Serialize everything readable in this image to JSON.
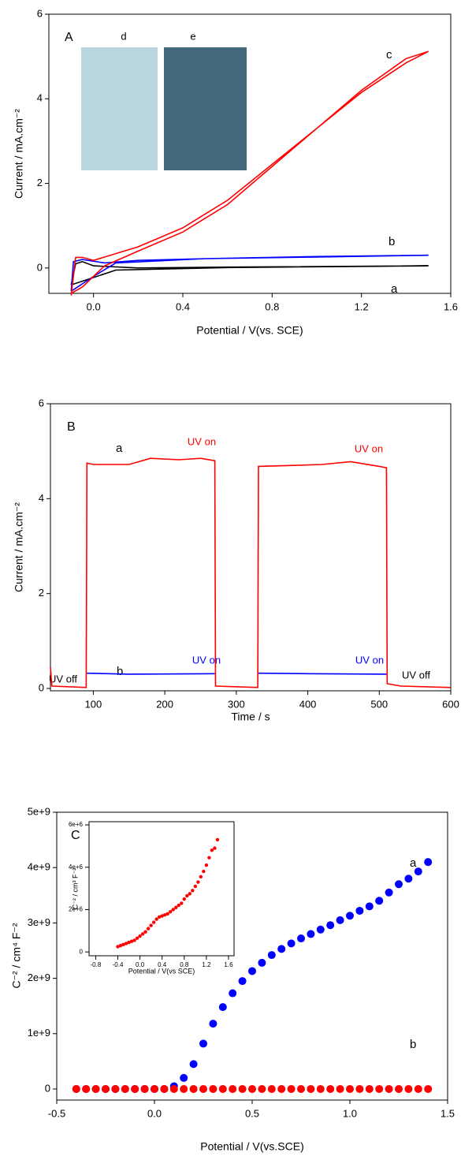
{
  "chart_data": [
    {
      "type": "line",
      "panel_label": "A",
      "x_label": "Potential / V(vs. SCE)",
      "y_label": "Current / mA.cm⁻²",
      "inset_labels": [
        "d",
        "e"
      ],
      "xlim": [
        -0.2,
        1.6
      ],
      "ylim": [
        -0.6,
        6
      ],
      "xticks": [
        {
          "value": 0,
          "label": "0.0"
        },
        0.4,
        0.8,
        1.2,
        1.6
      ],
      "yticks": [
        0,
        2,
        4,
        6
      ],
      "series": [
        {
          "name": "a",
          "color": "#000000",
          "x": [
            -0.1,
            -0.08,
            -0.05,
            0,
            0.2,
            0.6,
            1.5,
            0.6,
            0.1,
            -0.1
          ],
          "values": [
            -0.4,
            0.1,
            0.15,
            0.05,
            0,
            0.02,
            0.05,
            0.01,
            -0.05,
            -0.4
          ]
        },
        {
          "name": "b",
          "color": "#0000ff",
          "x": [
            -0.1,
            -0.09,
            -0.05,
            0.05,
            0.2,
            0.5,
            1,
            1.5,
            1,
            0.5,
            0.1,
            0,
            -0.1
          ],
          "values": [
            -0.55,
            0.15,
            0.2,
            0.12,
            0.18,
            0.22,
            0.26,
            0.3,
            0.27,
            0.22,
            0.12,
            -0.2,
            -0.55
          ]
        },
        {
          "name": "c",
          "color": "#ff0000",
          "x": [
            -0.1,
            -0.08,
            -0.05,
            0,
            0.2,
            0.4,
            0.6,
            0.8,
            1,
            1.2,
            1.4,
            1.5,
            1.4,
            1.2,
            1,
            0.8,
            0.6,
            0.4,
            0.2,
            0.05,
            -0.05,
            -0.1
          ],
          "values": [
            -0.65,
            0.25,
            0.25,
            0.18,
            0.5,
            0.95,
            1.6,
            2.45,
            3.3,
            4.15,
            4.85,
            5.12,
            4.95,
            4.2,
            3.3,
            2.4,
            1.5,
            0.85,
            0.4,
            0.05,
            -0.45,
            -0.6
          ]
        }
      ]
    },
    {
      "type": "line",
      "panel_label": "B",
      "x_label": "Time / s",
      "y_label": "Current / mA.cm⁻²",
      "xlim": [
        40,
        600
      ],
      "ylim": [
        -0.05,
        6
      ],
      "xticks": [
        100,
        200,
        300,
        400,
        500,
        600
      ],
      "yticks": [
        0,
        2,
        4,
        6
      ],
      "annotations": [
        {
          "text": "UV  on",
          "color": "#ff0000"
        },
        {
          "text": "UV on",
          "color": "#ff0000"
        },
        {
          "text": "UV on",
          "color": "#0000ff"
        },
        {
          "text": "UV on",
          "color": "#0000ff"
        },
        {
          "text": "UV off",
          "color": "#000000"
        },
        {
          "text": "UV off",
          "color": "#000000"
        }
      ],
      "series": [
        {
          "name": "b",
          "color": "#0000ff",
          "x": [
            91,
            150,
            270,
            300,
            331,
            400,
            510
          ],
          "values": [
            0.32,
            0.3,
            0.31,
            null,
            0.32,
            0.31,
            0.3
          ]
        },
        {
          "name": "a",
          "color": "#ff0000",
          "x": [
            40,
            42,
            90,
            91,
            100,
            150,
            180,
            220,
            250,
            270,
            271,
            330,
            331,
            380,
            420,
            460,
            500,
            510,
            511,
            530,
            600
          ],
          "values": [
            0.45,
            0.05,
            0.02,
            4.75,
            4.72,
            4.72,
            4.85,
            4.82,
            4.85,
            4.8,
            0.05,
            0.02,
            4.68,
            4.7,
            4.72,
            4.78,
            4.68,
            4.65,
            0.1,
            0.05,
            0.02
          ]
        }
      ]
    },
    {
      "type": "scatter",
      "panel_label": "C",
      "x_label": "Potential / V(vs.SCE)",
      "y_label": "C⁻² / cm⁴ F⁻²",
      "xlim": [
        -0.5,
        1.5
      ],
      "ylim": [
        -200000000,
        5000000000
      ],
      "xticks": [
        -0.5,
        {
          "value": 0,
          "label": "0.0"
        },
        0.5,
        {
          "value": 1,
          "label": "1.0"
        },
        1.5
      ],
      "yticks": [
        0,
        {
          "value": 1000000000,
          "label": "1e+9"
        },
        {
          "value": 2000000000,
          "label": "2e+9"
        },
        {
          "value": 3000000000,
          "label": "3e+9"
        },
        {
          "value": 4000000000,
          "label": "4e+9"
        },
        {
          "value": 5000000000,
          "label": "5e+9"
        }
      ],
      "x": [
        -0.4,
        -0.35,
        -0.3,
        -0.25,
        -0.2,
        -0.15,
        -0.1,
        -0.05,
        0,
        0.05,
        0.1,
        0.15,
        0.2,
        0.25,
        0.3,
        0.35,
        0.4,
        0.45,
        0.5,
        0.55,
        0.6,
        0.65,
        0.7,
        0.75,
        0.8,
        0.85,
        0.9,
        0.95,
        1,
        1.05,
        1.1,
        1.15,
        1.2,
        1.25,
        1.3,
        1.35,
        1.4
      ],
      "series": [
        {
          "name": "a",
          "color": "#0000ff",
          "values": [
            0,
            0,
            0,
            0,
            0,
            0,
            0,
            0,
            0,
            0,
            50000000,
            200000000,
            450000000,
            820000000,
            1180000000,
            1480000000,
            1730000000,
            1950000000,
            2130000000,
            2280000000,
            2420000000,
            2530000000,
            2630000000,
            2720000000,
            2800000000,
            2880000000,
            2960000000,
            3050000000,
            3130000000,
            3220000000,
            3300000000,
            3400000000,
            3550000000,
            3700000000,
            3800000000,
            3930000000,
            4100000000
          ]
        },
        {
          "name": "b",
          "color": "#ff0000",
          "values": [
            0,
            0,
            0,
            0,
            0,
            0,
            0,
            0,
            0,
            0,
            0,
            0,
            0,
            0,
            0,
            0,
            0,
            0,
            0,
            0,
            0,
            0,
            0,
            0,
            0,
            0,
            0,
            0,
            0,
            0,
            0,
            0,
            0,
            0,
            0,
            0,
            0
          ]
        }
      ]
    },
    {
      "type": "scatter",
      "x_label": "Potential / V(vs SCE)",
      "y_label": "C⁻² / cm³ F⁻²",
      "xlim": [
        -0.92,
        1.7
      ],
      "ylim": [
        -180000,
        6150000
      ],
      "xticks": [
        -0.8,
        -0.4,
        {
          "value": 0,
          "label": "0.0"
        },
        0.4,
        0.8,
        1.2,
        1.6
      ],
      "yticks": [
        0,
        {
          "value": 2000000,
          "label": "2e+6"
        },
        {
          "value": 4000000,
          "label": "4e+6"
        },
        {
          "value": 6000000,
          "label": "6e+6"
        }
      ],
      "x": [
        -0.4,
        -0.35,
        -0.3,
        -0.25,
        -0.2,
        -0.15,
        -0.1,
        -0.05,
        0,
        0.05,
        0.1,
        0.15,
        0.2,
        0.25,
        0.3,
        0.35,
        0.4,
        0.45,
        0.5,
        0.55,
        0.6,
        0.65,
        0.7,
        0.75,
        0.8,
        0.85,
        0.9,
        0.95,
        1,
        1.05,
        1.1,
        1.15,
        1.2,
        1.25,
        1.3,
        1.35,
        1.4
      ],
      "series": [
        {
          "color": "#ff0000",
          "values": [
            250000,
            300000,
            350000,
            400000,
            450000,
            500000,
            550000,
            650000,
            750000,
            850000,
            950000,
            1100000,
            1250000,
            1400000,
            1550000,
            1650000,
            1700000,
            1750000,
            1800000,
            1900000,
            2000000,
            2100000,
            2200000,
            2300000,
            2500000,
            2650000,
            2750000,
            2900000,
            3100000,
            3300000,
            3550000,
            3800000,
            4100000,
            4450000,
            4800000,
            4900000,
            5300000
          ]
        }
      ]
    }
  ]
}
